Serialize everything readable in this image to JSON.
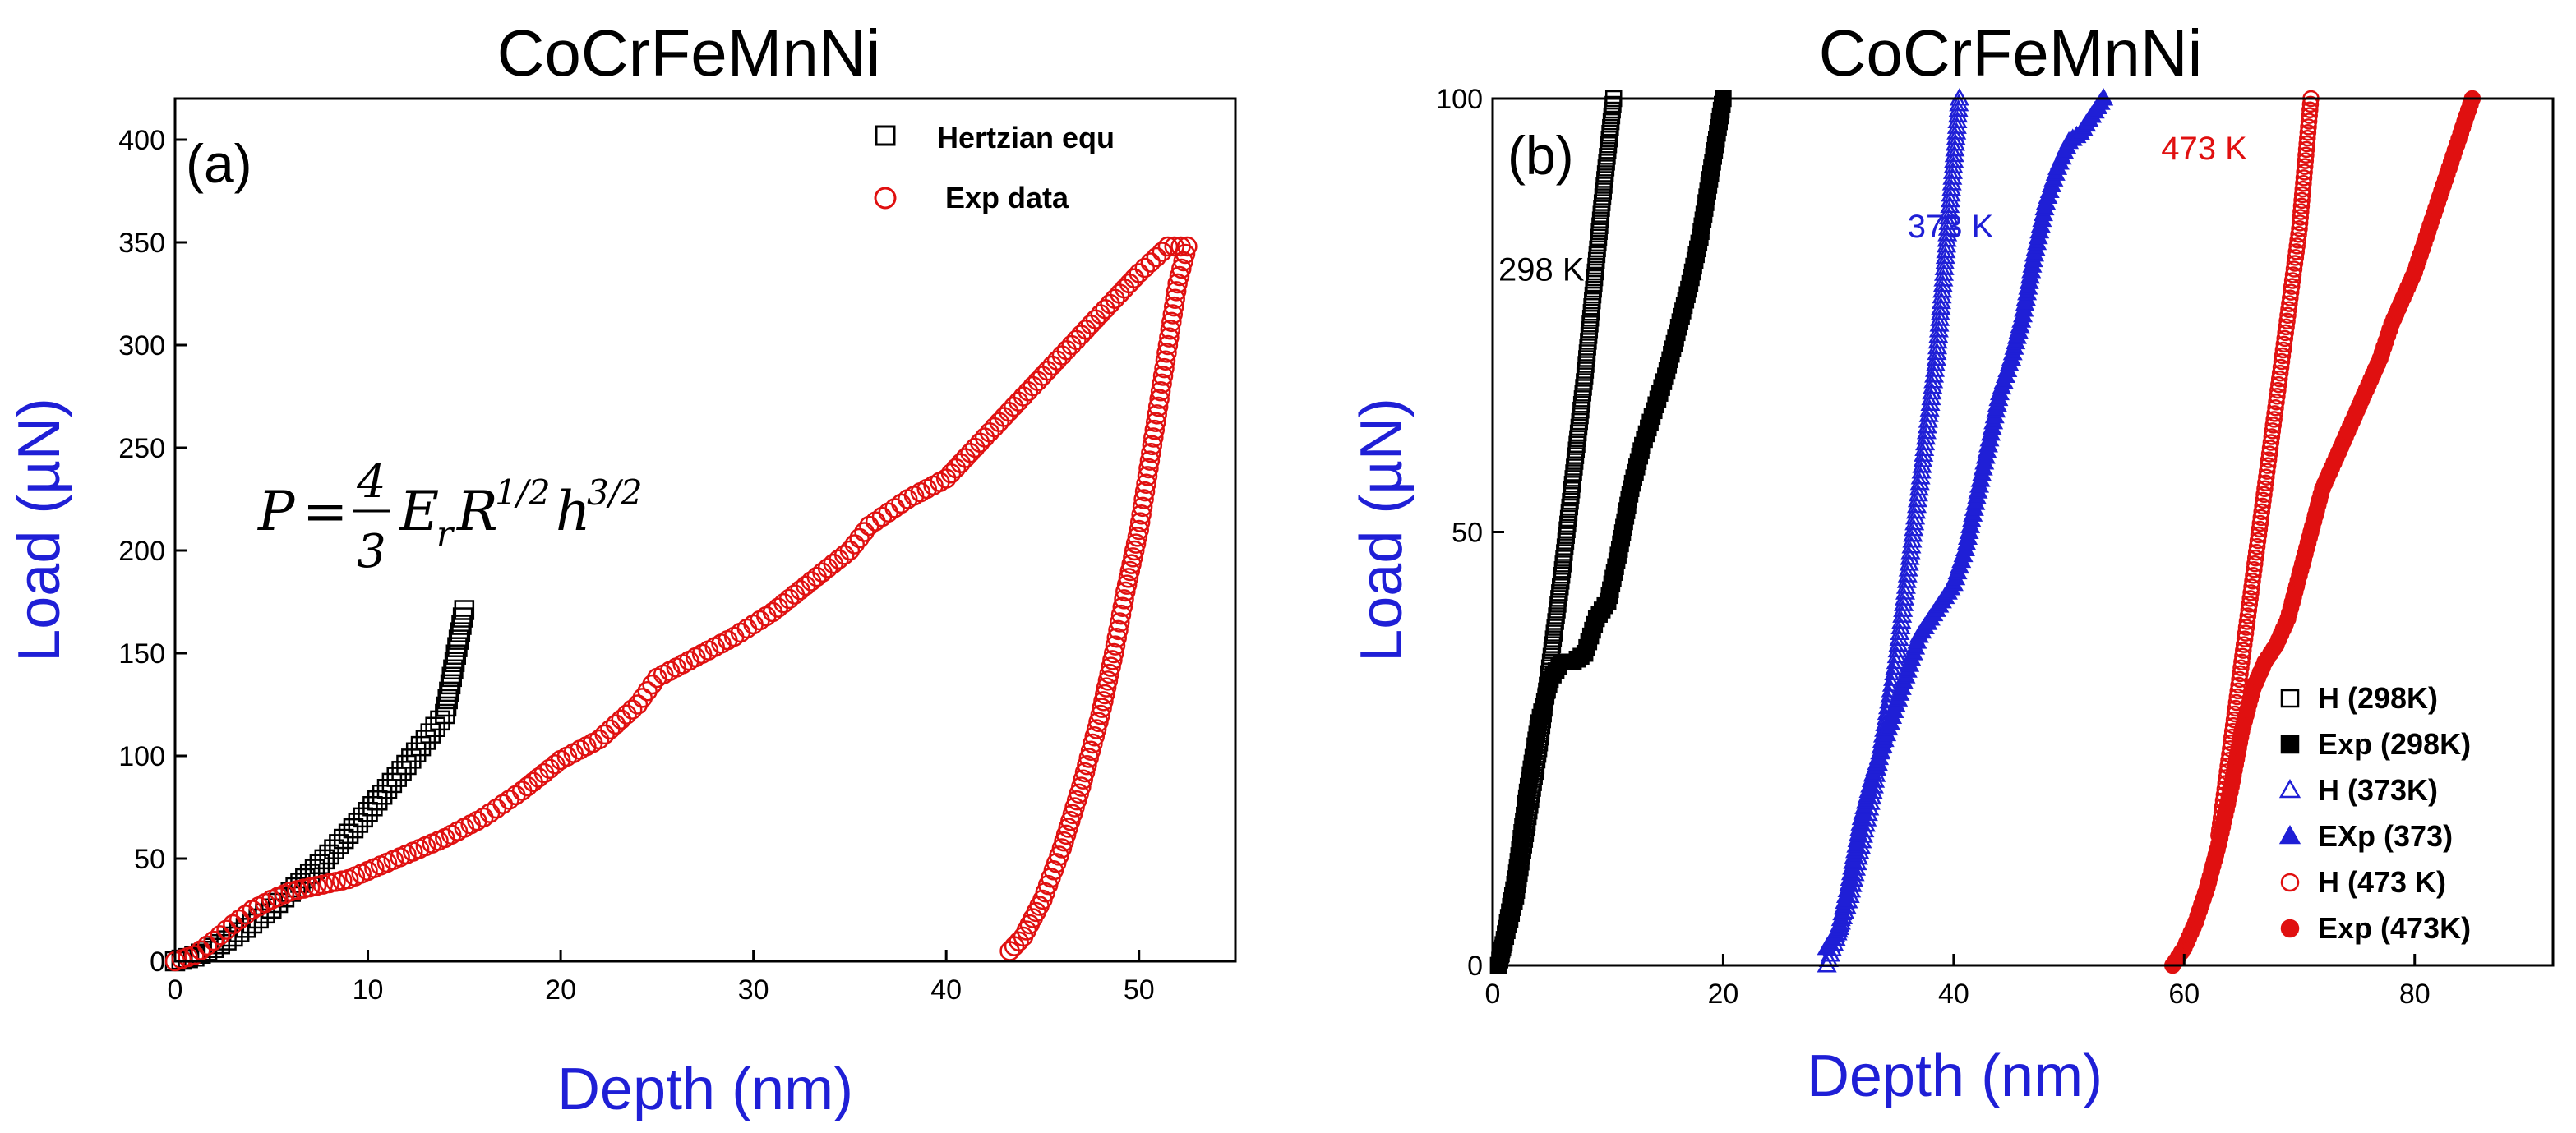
{
  "chart_data": [
    {
      "type": "scatter",
      "panel_label": "(a)",
      "title": "CoCrFeMnNi",
      "xlabel": "Depth (nm)",
      "ylabel": "Load (µN)",
      "xlim": [
        0,
        55
      ],
      "ylim": [
        0,
        420
      ],
      "xticks": [
        0,
        10,
        20,
        30,
        40,
        50
      ],
      "yticks": [
        0,
        50,
        100,
        150,
        200,
        250,
        300,
        350,
        400
      ],
      "equation": {
        "lhs": "P",
        "eq": "=",
        "num": "4",
        "den": "3",
        "E": "E",
        "E_sub": "r",
        "R": "R",
        "R_sup": "1/2",
        "h": "h",
        "h_sup": "3/2"
      },
      "series": [
        {
          "name": "Hertzian equ",
          "marker": "open-square",
          "color": "#000000",
          "points": [
            [
              0,
              0
            ],
            [
              1,
              2.3
            ],
            [
              2,
              6.5
            ],
            [
              3,
              12
            ],
            [
              4,
              18.4
            ],
            [
              5,
              25.7
            ],
            [
              6,
              33.8
            ],
            [
              7,
              42.6
            ],
            [
              8,
              52
            ],
            [
              9,
              62.1
            ],
            [
              10,
              72.7
            ],
            [
              11,
              83.9
            ],
            [
              12,
              95.6
            ],
            [
              13,
              107.8
            ],
            [
              14,
              120.4
            ],
            [
              15,
              171
            ]
          ]
        },
        {
          "name": "Exp data",
          "marker": "open-circle",
          "color": "#e01010",
          "points": [
            [
              0,
              0
            ],
            [
              1,
              3
            ],
            [
              2,
              10
            ],
            [
              3,
              18
            ],
            [
              4,
              25
            ],
            [
              5,
              30
            ],
            [
              6,
              34
            ],
            [
              7,
              36
            ],
            [
              8,
              38
            ],
            [
              9,
              40
            ],
            [
              10,
              44
            ],
            [
              12,
              52
            ],
            [
              14,
              60
            ],
            [
              16,
              70
            ],
            [
              18,
              83
            ],
            [
              20,
              98
            ],
            [
              22,
              108
            ],
            [
              24,
              125
            ],
            [
              25,
              138
            ],
            [
              27,
              148
            ],
            [
              29,
              158
            ],
            [
              31,
              170
            ],
            [
              33,
              185
            ],
            [
              35,
              200
            ],
            [
              36,
              212
            ],
            [
              38,
              225
            ],
            [
              40,
              235
            ],
            [
              42,
              255
            ],
            [
              44,
              275
            ],
            [
              46,
              295
            ],
            [
              48,
              315
            ],
            [
              50,
              335
            ],
            [
              51.5,
              348
            ],
            [
              52.5,
              348
            ],
            [
              52,
              330
            ],
            [
              51.5,
              300
            ],
            [
              51,
              270
            ],
            [
              50.5,
              240
            ],
            [
              50,
              210
            ],
            [
              49.3,
              180
            ],
            [
              48.7,
              150
            ],
            [
              48,
              120
            ],
            [
              47,
              85
            ],
            [
              46,
              55
            ],
            [
              45,
              30
            ],
            [
              44,
              12
            ],
            [
              43.3,
              5
            ]
          ]
        }
      ]
    },
    {
      "type": "scatter",
      "panel_label": "(b)",
      "title": "CoCrFeMnNi",
      "xlabel": "Depth (nm)",
      "ylabel": "Load (µN)",
      "xlim": [
        0,
        92
      ],
      "ylim": [
        0,
        100
      ],
      "xticks": [
        0,
        20,
        40,
        60,
        80
      ],
      "yticks": [
        0,
        50,
        100
      ],
      "annotations": [
        {
          "text": "298 K",
          "color": "#000000",
          "x": 0.5,
          "y": 79
        },
        {
          "text": "373 K",
          "color": "#1f1fd6",
          "x": 36,
          "y": 84
        },
        {
          "text": "473 K",
          "color": "#e01010",
          "x": 58,
          "y": 93
        }
      ],
      "series": [
        {
          "name": "H (298K)",
          "marker": "open-square",
          "color": "#000000",
          "points": [
            [
              0.5,
              0
            ],
            [
              2,
              8
            ],
            [
              4,
              25
            ],
            [
              6,
              45
            ],
            [
              8,
              68
            ],
            [
              9.5,
              88
            ],
            [
              10.5,
              100
            ]
          ]
        },
        {
          "name": "Exp (298K)",
          "marker": "filled-square",
          "color": "#000000",
          "points": [
            [
              0.5,
              0
            ],
            [
              1,
              3
            ],
            [
              2,
              10
            ],
            [
              3,
              20
            ],
            [
              4,
              28
            ],
            [
              5,
              33
            ],
            [
              6,
              35
            ],
            [
              7,
              35
            ],
            [
              8,
              36
            ],
            [
              9,
              40
            ],
            [
              10,
              42
            ],
            [
              11,
              48
            ],
            [
              12,
              55
            ],
            [
              13,
              60
            ],
            [
              14,
              64
            ],
            [
              15,
              68
            ],
            [
              16,
              73
            ],
            [
              17,
              78
            ],
            [
              18,
              84
            ],
            [
              19,
              92
            ],
            [
              20,
              100
            ]
          ]
        },
        {
          "name": "H (373K)",
          "marker": "open-triangle",
          "color": "#1f1fd6",
          "points": [
            [
              29,
              0
            ],
            [
              31,
              8
            ],
            [
              33,
              20
            ],
            [
              35,
              35
            ],
            [
              37,
              55
            ],
            [
              38.5,
              70
            ],
            [
              39.5,
              85
            ],
            [
              40.5,
              100
            ]
          ]
        },
        {
          "name": "EXp (373)",
          "marker": "filled-triangle",
          "color": "#1f1fd6",
          "points": [
            [
              29,
              2
            ],
            [
              30,
              4
            ],
            [
              31,
              10
            ],
            [
              32,
              17
            ],
            [
              33,
              22
            ],
            [
              34,
              26
            ],
            [
              35,
              30
            ],
            [
              36,
              34
            ],
            [
              37,
              38
            ],
            [
              38,
              40
            ],
            [
              39,
              42
            ],
            [
              40,
              44
            ],
            [
              41,
              48
            ],
            [
              42,
              54
            ],
            [
              43,
              60
            ],
            [
              44,
              66
            ],
            [
              45,
              70
            ],
            [
              46,
              75
            ],
            [
              47,
              82
            ],
            [
              48,
              88
            ],
            [
              49,
              92
            ],
            [
              50,
              95
            ],
            [
              51,
              96
            ],
            [
              52,
              98
            ],
            [
              53,
              100
            ]
          ]
        },
        {
          "name": "H (473 K)",
          "marker": "open-circle",
          "color": "#e01010",
          "points": [
            [
              63,
              15
            ],
            [
              64,
              25
            ],
            [
              65,
              35
            ],
            [
              66,
              45
            ],
            [
              67,
              55
            ],
            [
              68,
              65
            ],
            [
              69,
              75
            ],
            [
              70,
              85
            ],
            [
              71,
              100
            ]
          ]
        },
        {
          "name": "Exp (473K)",
          "marker": "filled-circle",
          "color": "#e01010",
          "points": [
            [
              59,
              0
            ],
            [
              60,
              2
            ],
            [
              61,
              5
            ],
            [
              62,
              9
            ],
            [
              63,
              14
            ],
            [
              64,
              20
            ],
            [
              65,
              27
            ],
            [
              66,
              32
            ],
            [
              67,
              35
            ],
            [
              68,
              37
            ],
            [
              69,
              40
            ],
            [
              70,
              45
            ],
            [
              71,
              50
            ],
            [
              72,
              55
            ],
            [
              73,
              58
            ],
            [
              74,
              61
            ],
            [
              75,
              64
            ],
            [
              76,
              67
            ],
            [
              77,
              70
            ],
            [
              78,
              74
            ],
            [
              79,
              77
            ],
            [
              80,
              80
            ],
            [
              81,
              84
            ],
            [
              82,
              88
            ],
            [
              83,
              92
            ],
            [
              84,
              96
            ],
            [
              85,
              100
            ]
          ]
        }
      ]
    }
  ]
}
